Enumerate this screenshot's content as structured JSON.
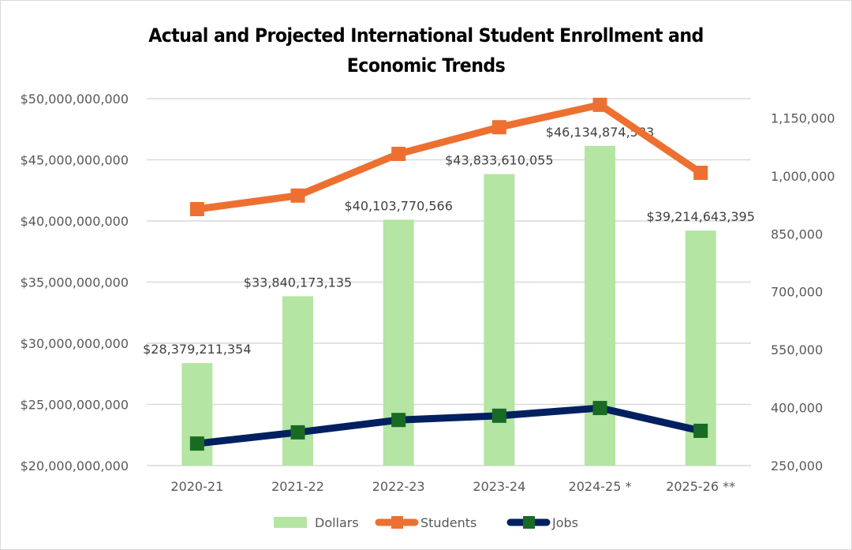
{
  "chart_data": {
    "type": "bar+line",
    "title": "Actual and Projected International Student Enrollment and Economic Trends",
    "title_lines": [
      "Actual and Projected International Student Enrollment and",
      "Economic Trends"
    ],
    "categories": [
      "2020-21",
      "2021-22",
      "2022-23",
      "2023-24",
      "2024-25 *",
      "2025-26 **"
    ],
    "series": [
      {
        "name": "Dollars",
        "type": "bar",
        "axis": "left",
        "color": "#b4e5a2",
        "values": [
          28379211354,
          33840173135,
          40103770566,
          43833610055,
          46134874583,
          39214643395
        ],
        "labels": [
          "$28,379,211,354",
          "$33,840,173,135",
          "$40,103,770,566",
          "$43,833,610,055",
          "$46,134,874,583",
          "$39,214,643,395"
        ]
      },
      {
        "name": "Students",
        "type": "line",
        "axis": "right",
        "color": "#ed7031",
        "marker_color": "#ed7031",
        "values": [
          914000,
          949000,
          1057000,
          1126000,
          1184000,
          1008000
        ]
      },
      {
        "name": "Jobs",
        "type": "line",
        "axis": "right",
        "color": "#002060",
        "marker_color": "#196b24",
        "values": [
          307000,
          336000,
          368000,
          379000,
          399000,
          340000
        ]
      }
    ],
    "left_axis": {
      "ylim": [
        20000000000,
        50000000000
      ],
      "ticks": [
        20000000000,
        25000000000,
        30000000000,
        35000000000,
        40000000000,
        45000000000,
        50000000000
      ],
      "tick_labels": [
        "$20,000,000,000",
        "$25,000,000,000",
        "$30,000,000,000",
        "$35,000,000,000",
        "$40,000,000,000",
        "$45,000,000,000",
        "$50,000,000,000"
      ]
    },
    "right_axis": {
      "ylim": [
        250000,
        1200000
      ],
      "ticks": [
        250000,
        400000,
        550000,
        700000,
        850000,
        1000000,
        1150000
      ],
      "tick_labels": [
        "250,000",
        "400,000",
        "550,000",
        "700,000",
        "850,000",
        "1,000,000",
        "1,150,000"
      ]
    },
    "grid": true,
    "legend": {
      "position": "bottom",
      "entries": [
        "Dollars",
        "Students",
        "Jobs"
      ]
    },
    "xlabel": "",
    "ylabel": ""
  }
}
